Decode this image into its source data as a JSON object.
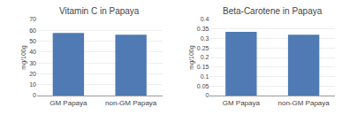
{
  "chart_data": [
    {
      "type": "bar",
      "title": "Vitamin C in Papaya",
      "ylabel": "mg/100g",
      "categories": [
        "GM Papaya",
        "non-GM Papaya"
      ],
      "values": [
        57.5,
        56.0
      ],
      "color": "#4f7ab3",
      "ylim": [
        0,
        70
      ],
      "yticks": [
        0,
        10,
        20,
        30,
        40,
        50,
        60,
        70
      ],
      "grid": true
    },
    {
      "type": "bar",
      "title": "Beta-Carotene in Papaya",
      "ylabel": "mg/100g",
      "categories": [
        "GM Papaya",
        "non-GM Papaya"
      ],
      "values": [
        0.335,
        0.32
      ],
      "color": "#4f7ab3",
      "ylim": [
        0,
        0.4
      ],
      "yticks": [
        0,
        0.05,
        0.1,
        0.15,
        0.2,
        0.25,
        0.3,
        0.35,
        0.4
      ],
      "grid": true
    }
  ]
}
